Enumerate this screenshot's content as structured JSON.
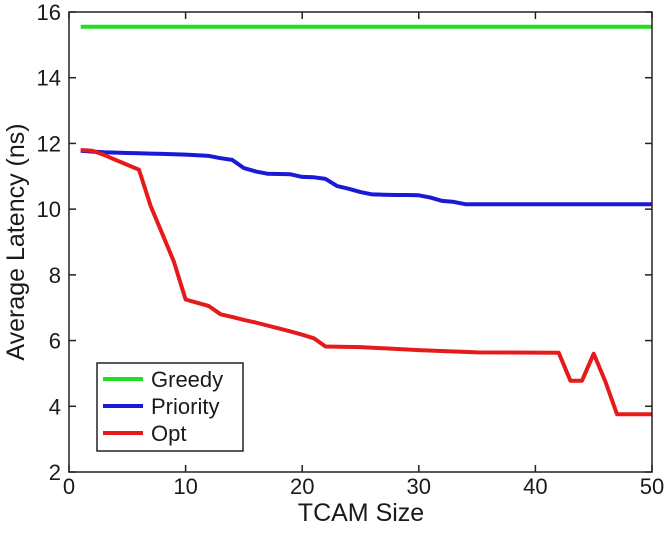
{
  "chart_data": {
    "type": "line",
    "title": "",
    "xlabel": "TCAM Size",
    "ylabel": "Average Latency (ns)",
    "xlim": [
      0,
      50
    ],
    "ylim": [
      2,
      16
    ],
    "xticks": [
      0,
      10,
      20,
      30,
      40,
      50
    ],
    "yticks": [
      2,
      4,
      6,
      8,
      10,
      12,
      14,
      16
    ],
    "grid": false,
    "legend_position": "bottom-left",
    "series": [
      {
        "name": "Greedy",
        "color": "#22dd22",
        "points": [
          [
            1,
            15.55
          ],
          [
            50,
            15.55
          ]
        ]
      },
      {
        "name": "Priority",
        "color": "#1a1ad6",
        "points": [
          [
            1,
            11.78
          ],
          [
            2,
            11.75
          ],
          [
            3,
            11.73
          ],
          [
            4,
            11.72
          ],
          [
            5,
            11.71
          ],
          [
            6,
            11.7
          ],
          [
            7,
            11.69
          ],
          [
            8,
            11.68
          ],
          [
            9,
            11.67
          ],
          [
            10,
            11.66
          ],
          [
            11,
            11.64
          ],
          [
            12,
            11.62
          ],
          [
            13,
            11.55
          ],
          [
            14,
            11.5
          ],
          [
            15,
            11.25
          ],
          [
            16,
            11.15
          ],
          [
            17,
            11.08
          ],
          [
            18,
            11.07
          ],
          [
            19,
            11.06
          ],
          [
            20,
            10.98
          ],
          [
            21,
            10.97
          ],
          [
            22,
            10.92
          ],
          [
            23,
            10.7
          ],
          [
            24,
            10.62
          ],
          [
            25,
            10.52
          ],
          [
            26,
            10.45
          ],
          [
            27,
            10.44
          ],
          [
            28,
            10.43
          ],
          [
            29,
            10.43
          ],
          [
            30,
            10.42
          ],
          [
            31,
            10.35
          ],
          [
            32,
            10.25
          ],
          [
            33,
            10.22
          ],
          [
            34,
            10.15
          ],
          [
            35,
            10.15
          ],
          [
            40,
            10.15
          ],
          [
            45,
            10.15
          ],
          [
            50,
            10.15
          ]
        ]
      },
      {
        "name": "Opt",
        "color": "#e51b1b",
        "points": [
          [
            1,
            11.8
          ],
          [
            2,
            11.78
          ],
          [
            3,
            11.65
          ],
          [
            4,
            11.5
          ],
          [
            5,
            11.35
          ],
          [
            6,
            11.2
          ],
          [
            7,
            10.1
          ],
          [
            8,
            9.25
          ],
          [
            9,
            8.4
          ],
          [
            10,
            7.25
          ],
          [
            11,
            7.15
          ],
          [
            12,
            7.05
          ],
          [
            13,
            6.8
          ],
          [
            14,
            6.72
          ],
          [
            15,
            6.63
          ],
          [
            16,
            6.55
          ],
          [
            17,
            6.46
          ],
          [
            18,
            6.37
          ],
          [
            19,
            6.28
          ],
          [
            20,
            6.18
          ],
          [
            21,
            6.07
          ],
          [
            22,
            5.82
          ],
          [
            25,
            5.8
          ],
          [
            30,
            5.71
          ],
          [
            35,
            5.64
          ],
          [
            42,
            5.63
          ],
          [
            43,
            4.78
          ],
          [
            44,
            4.78
          ],
          [
            45,
            5.6
          ],
          [
            46,
            4.75
          ],
          [
            47,
            3.76
          ],
          [
            48,
            3.76
          ],
          [
            49,
            3.76
          ],
          [
            50,
            3.76
          ]
        ]
      }
    ]
  }
}
